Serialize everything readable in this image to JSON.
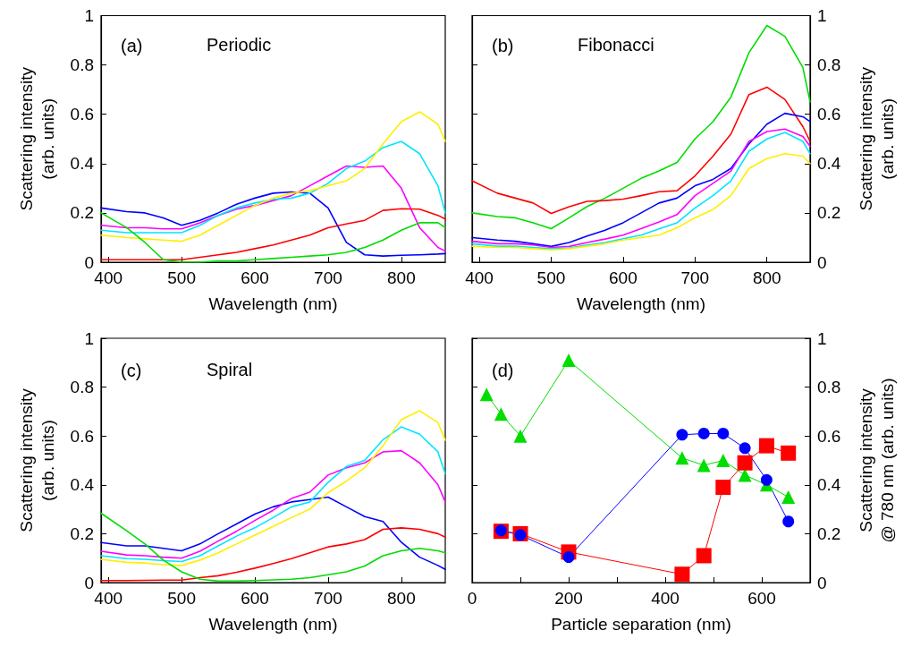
{
  "chart_data": [
    {
      "type": "line",
      "title": "Periodic",
      "annotations": [
        "(a)"
      ],
      "xlabel": "Wavelength (nm)",
      "ylabel": "Scattering intensity\n(arb. units)",
      "xlim": [
        390,
        860
      ],
      "xticks": [
        400,
        500,
        600,
        700,
        800
      ],
      "ylim": [
        0,
        1
      ],
      "yticks": [
        0,
        0.2,
        0.4,
        0.6,
        0.8,
        1
      ],
      "x": [
        390,
        425,
        450,
        475,
        500,
        525,
        550,
        575,
        600,
        625,
        650,
        675,
        700,
        725,
        750,
        775,
        800,
        825,
        850,
        860
      ],
      "series": [
        {
          "color": "#0000ff",
          "values": [
            0.22,
            0.205,
            0.2,
            0.18,
            0.15,
            0.17,
            0.2,
            0.235,
            0.26,
            0.28,
            0.285,
            0.28,
            0.22,
            0.08,
            0.03,
            0.025,
            0.028,
            0.03,
            0.033,
            0.035
          ]
        },
        {
          "color": "#ff00ff",
          "values": [
            0.15,
            0.14,
            0.14,
            0.135,
            0.135,
            0.16,
            0.19,
            0.215,
            0.23,
            0.25,
            0.27,
            0.31,
            0.35,
            0.39,
            0.385,
            0.39,
            0.3,
            0.14,
            0.06,
            0.045
          ]
        },
        {
          "color": "#00e5ff",
          "values": [
            0.13,
            0.12,
            0.12,
            0.12,
            0.12,
            0.15,
            0.19,
            0.22,
            0.24,
            0.255,
            0.26,
            0.28,
            0.32,
            0.38,
            0.41,
            0.465,
            0.49,
            0.44,
            0.31,
            0.2
          ]
        },
        {
          "color": "#ffee00",
          "values": [
            0.11,
            0.1,
            0.095,
            0.09,
            0.085,
            0.11,
            0.15,
            0.19,
            0.23,
            0.26,
            0.28,
            0.29,
            0.31,
            0.33,
            0.38,
            0.48,
            0.57,
            0.61,
            0.56,
            0.49
          ]
        },
        {
          "color": "#ff0000",
          "values": [
            0.01,
            0.01,
            0.01,
            0.01,
            0.01,
            0.02,
            0.03,
            0.04,
            0.055,
            0.07,
            0.09,
            0.11,
            0.14,
            0.155,
            0.17,
            0.21,
            0.217,
            0.215,
            0.19,
            0.175
          ]
        },
        {
          "color": "#00dd00",
          "values": [
            0.2,
            0.14,
            0.08,
            0.01,
            0.0,
            0.0,
            0.005,
            0.005,
            0.01,
            0.015,
            0.02,
            0.025,
            0.03,
            0.04,
            0.06,
            0.09,
            0.13,
            0.16,
            0.16,
            0.14
          ]
        }
      ]
    },
    {
      "type": "line",
      "title": "Fibonacci",
      "annotations": [
        "(b)"
      ],
      "xlabel": "Wavelength (nm)",
      "y2label": "Scattering intensity\n(arb. units)",
      "xlim": [
        390,
        860
      ],
      "xticks": [
        400,
        500,
        600,
        700,
        800
      ],
      "y2lim": [
        0,
        1
      ],
      "y2ticks": [
        0,
        0.2,
        0.4,
        0.6,
        0.8,
        1
      ],
      "x": [
        390,
        425,
        450,
        475,
        500,
        525,
        550,
        575,
        600,
        625,
        650,
        675,
        700,
        725,
        750,
        775,
        800,
        825,
        850,
        860
      ],
      "series": [
        {
          "axis": "y2",
          "color": "#00dd00",
          "values": [
            0.2,
            0.185,
            0.18,
            0.16,
            0.136,
            0.18,
            0.226,
            0.26,
            0.3,
            0.34,
            0.37,
            0.405,
            0.5,
            0.57,
            0.67,
            0.85,
            0.96,
            0.916,
            0.79,
            0.65
          ]
        },
        {
          "axis": "y2",
          "color": "#ff0000",
          "values": [
            0.33,
            0.28,
            0.26,
            0.24,
            0.198,
            0.225,
            0.247,
            0.25,
            0.256,
            0.27,
            0.286,
            0.29,
            0.35,
            0.43,
            0.52,
            0.68,
            0.71,
            0.66,
            0.55,
            0.49
          ]
        },
        {
          "axis": "y2",
          "color": "#0000ff",
          "values": [
            0.1,
            0.09,
            0.085,
            0.075,
            0.064,
            0.08,
            0.106,
            0.13,
            0.16,
            0.2,
            0.24,
            0.26,
            0.31,
            0.336,
            0.38,
            0.48,
            0.56,
            0.604,
            0.59,
            0.57
          ]
        },
        {
          "axis": "y2",
          "color": "#ff00ff",
          "values": [
            0.085,
            0.075,
            0.075,
            0.07,
            0.06,
            0.064,
            0.08,
            0.094,
            0.11,
            0.136,
            0.163,
            0.193,
            0.27,
            0.32,
            0.37,
            0.49,
            0.53,
            0.54,
            0.51,
            0.47
          ]
        },
        {
          "axis": "y2",
          "color": "#00e5ff",
          "values": [
            0.075,
            0.065,
            0.065,
            0.06,
            0.055,
            0.058,
            0.07,
            0.08,
            0.095,
            0.11,
            0.135,
            0.16,
            0.22,
            0.27,
            0.33,
            0.45,
            0.5,
            0.526,
            0.49,
            0.44
          ]
        },
        {
          "axis": "y2",
          "color": "#ffee00",
          "values": [
            0.065,
            0.06,
            0.06,
            0.055,
            0.05,
            0.055,
            0.065,
            0.075,
            0.09,
            0.1,
            0.11,
            0.14,
            0.18,
            0.214,
            0.27,
            0.38,
            0.42,
            0.44,
            0.43,
            0.4
          ]
        }
      ]
    },
    {
      "type": "line",
      "title": "Spiral",
      "annotations": [
        "(c)"
      ],
      "xlabel": "Wavelength (nm)",
      "ylabel": "Scattering intensity\n(arb. units)",
      "xlim": [
        390,
        860
      ],
      "xticks": [
        400,
        500,
        600,
        700,
        800
      ],
      "ylim": [
        0,
        1
      ],
      "yticks": [
        0,
        0.2,
        0.4,
        0.6,
        0.8,
        1
      ],
      "x": [
        390,
        425,
        450,
        475,
        500,
        525,
        550,
        575,
        600,
        625,
        650,
        675,
        700,
        725,
        750,
        775,
        800,
        825,
        850,
        860
      ],
      "series": [
        {
          "color": "#0000ff",
          "values": [
            0.164,
            0.15,
            0.15,
            0.14,
            0.13,
            0.158,
            0.2,
            0.24,
            0.28,
            0.31,
            0.33,
            0.34,
            0.35,
            0.31,
            0.27,
            0.25,
            0.165,
            0.104,
            0.07,
            0.054
          ]
        },
        {
          "color": "#ff00ff",
          "values": [
            0.128,
            0.113,
            0.11,
            0.104,
            0.1,
            0.128,
            0.17,
            0.21,
            0.254,
            0.296,
            0.344,
            0.37,
            0.44,
            0.47,
            0.49,
            0.535,
            0.54,
            0.49,
            0.4,
            0.33
          ]
        },
        {
          "color": "#00e5ff",
          "values": [
            0.11,
            0.098,
            0.095,
            0.09,
            0.086,
            0.11,
            0.15,
            0.19,
            0.224,
            0.266,
            0.31,
            0.33,
            0.41,
            0.475,
            0.5,
            0.585,
            0.637,
            0.607,
            0.535,
            0.445
          ]
        },
        {
          "color": "#ffee00",
          "values": [
            0.095,
            0.083,
            0.08,
            0.073,
            0.07,
            0.092,
            0.122,
            0.158,
            0.194,
            0.23,
            0.266,
            0.3,
            0.368,
            0.415,
            0.47,
            0.56,
            0.667,
            0.703,
            0.655,
            0.583
          ]
        },
        {
          "color": "#ff0000",
          "values": [
            0.008,
            0.008,
            0.009,
            0.01,
            0.01,
            0.02,
            0.028,
            0.042,
            0.059,
            0.078,
            0.098,
            0.122,
            0.146,
            0.158,
            0.176,
            0.218,
            0.224,
            0.218,
            0.2,
            0.186
          ]
        },
        {
          "color": "#00dd00",
          "values": [
            0.284,
            0.212,
            0.158,
            0.092,
            0.044,
            0.014,
            0.006,
            0.006,
            0.008,
            0.011,
            0.014,
            0.02,
            0.032,
            0.044,
            0.068,
            0.11,
            0.13,
            0.14,
            0.13,
            0.122
          ]
        }
      ]
    },
    {
      "type": "line",
      "annotations": [
        "(d)"
      ],
      "xlabel": "Particle separation (nm)",
      "y2label": "Scattering intensity\n@ 780 nm (arb. units)",
      "xlim": [
        0,
        700
      ],
      "xticks": [
        0,
        {
          "value": 100,
          "label": null
        },
        200,
        {
          "value": 300,
          "label": null
        },
        400,
        {
          "value": 500,
          "label": null
        },
        600
      ],
      "y2lim": [
        0,
        1
      ],
      "y2ticks": [
        0,
        0.2,
        0.4,
        0.6,
        0.8,
        1
      ],
      "series": [
        {
          "axis": "y2",
          "color": "#00dd00",
          "marker": "triangle",
          "x": [
            30,
            60,
            100,
            200,
            435,
            480,
            520,
            565,
            610,
            655
          ],
          "values": [
            0.77,
            0.69,
            0.6,
            0.91,
            0.51,
            0.48,
            0.5,
            0.44,
            0.4,
            0.35
          ]
        },
        {
          "axis": "y2",
          "color": "#ff0000",
          "marker": "square",
          "x": [
            60,
            100,
            200,
            435,
            480,
            520,
            565,
            610,
            655
          ],
          "values": [
            0.21,
            0.2,
            0.125,
            0.034,
            0.11,
            0.39,
            0.49,
            0.56,
            0.53
          ]
        },
        {
          "axis": "y2",
          "color": "#0000ff",
          "marker": "circle",
          "x": [
            60,
            100,
            200,
            435,
            480,
            520,
            565,
            610,
            655
          ],
          "values": [
            0.213,
            0.195,
            0.104,
            0.605,
            0.61,
            0.61,
            0.55,
            0.42,
            0.25
          ]
        }
      ]
    }
  ]
}
